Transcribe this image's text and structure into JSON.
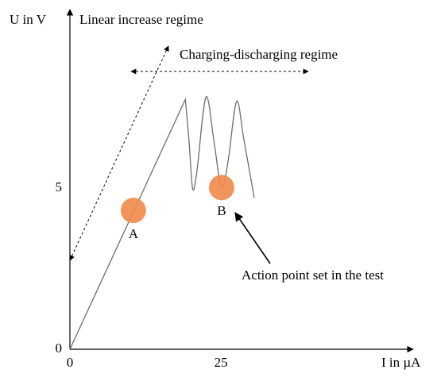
{
  "chart_data": {
    "type": "line",
    "x_label": "I in µA",
    "y_label": "U in V",
    "xlim": [
      0,
      56.8
    ],
    "ylim": [
      0,
      10.5
    ],
    "xticks": [
      0,
      25
    ],
    "yticks": [
      0,
      5
    ],
    "x": [
      0,
      19.1,
      19.7,
      20.3,
      21.0,
      22.5,
      23.8,
      24.8,
      25.4,
      26.3,
      27.6,
      28.8,
      30.5
    ],
    "values": [
      0,
      7.76,
      6.5,
      5.0,
      5.5,
      7.83,
      6.5,
      5.2,
      5.05,
      6.0,
      7.7,
      6.5,
      4.7
    ],
    "color": "#6e6e6e",
    "points": [
      {
        "label": "A",
        "x": 10.5,
        "y": 4.31,
        "color": "#f08a4b"
      },
      {
        "label": "B",
        "x": 25.1,
        "y": 5.02,
        "color": "#f08a4b"
      }
    ],
    "annotations": [
      "Linear increase regime",
      "Charging-discharging regime",
      "Action point set in the test"
    ]
  }
}
